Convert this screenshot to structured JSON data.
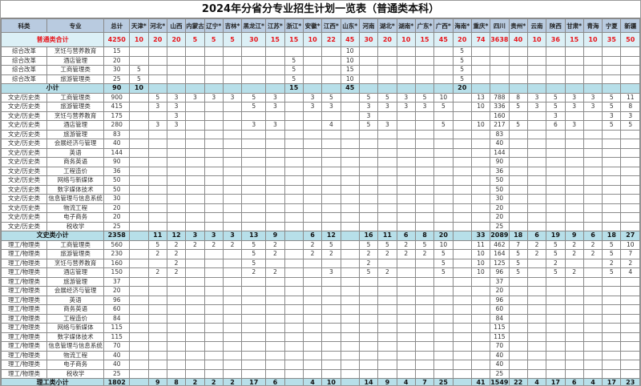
{
  "title": "2024年分省分专业招生计划一览表（普通类本科）",
  "headers": {
    "category": "科类",
    "major": "专业",
    "total": "总计"
  },
  "provinces": [
    "天津*",
    "河北*",
    "山西",
    "内蒙古",
    "辽宁*",
    "吉林*",
    "黑龙江*",
    "江苏*",
    "浙江*",
    "安徽*",
    "江西*",
    "山东*",
    "河南",
    "湖北*",
    "湖南*",
    "广东*",
    "广西*",
    "海南*",
    "重庆*",
    "四川",
    "贵州*",
    "云南",
    "陕西",
    "甘肃*",
    "青海",
    "宁夏",
    "新疆"
  ],
  "colors": {
    "header_bg": "#b9cbe0",
    "total_bg": "#dcf0f6",
    "subtotal_bg": "#b7dfe9",
    "total_text": "#e8141b"
  },
  "grand_total": {
    "label": "普通类合计",
    "total": "4250",
    "values": [
      "10",
      "20",
      "20",
      "5",
      "5",
      "5",
      "30",
      "15",
      "15",
      "10",
      "22",
      "45",
      "30",
      "20",
      "10",
      "15",
      "45",
      "20",
      "74",
      "3638",
      "40",
      "10",
      "36",
      "15",
      "10",
      "35",
      "50"
    ]
  },
  "rows": [
    {
      "type": "row",
      "category": "综合改革",
      "major": "烹饪与营养教育",
      "total": "15",
      "values": [
        "",
        "",
        "",
        "",
        "",
        "",
        "",
        "",
        "",
        "",
        "",
        "10",
        "",
        "",
        "",
        "",
        "",
        "5",
        "",
        "",
        "",
        "",
        "",
        "",
        "",
        "",
        ""
      ]
    },
    {
      "type": "row",
      "category": "综合改革",
      "major": "酒店管理",
      "total": "20",
      "values": [
        "",
        "",
        "",
        "",
        "",
        "",
        "",
        "",
        "5",
        "",
        "",
        "10",
        "",
        "",
        "",
        "",
        "",
        "5",
        "",
        "",
        "",
        "",
        "",
        "",
        "",
        "",
        ""
      ]
    },
    {
      "type": "row",
      "category": "综合改革",
      "major": "工商管理类",
      "total": "30",
      "values": [
        "5",
        "",
        "",
        "",
        "",
        "",
        "",
        "",
        "5",
        "",
        "",
        "15",
        "",
        "",
        "",
        "",
        "",
        "5",
        "",
        "",
        "",
        "",
        "",
        "",
        "",
        "",
        ""
      ]
    },
    {
      "type": "row",
      "category": "综合改革",
      "major": "旅游管理类",
      "total": "25",
      "values": [
        "5",
        "",
        "",
        "",
        "",
        "",
        "",
        "",
        "5",
        "",
        "",
        "10",
        "",
        "",
        "",
        "",
        "",
        "5",
        "",
        "",
        "",
        "",
        "",
        "",
        "",
        "",
        ""
      ]
    },
    {
      "type": "sub",
      "label": "小计",
      "total": "90",
      "values": [
        "10",
        "",
        "",
        "",
        "",
        "",
        "",
        "",
        "15",
        "",
        "",
        "45",
        "",
        "",
        "",
        "",
        "",
        "20",
        "",
        "",
        "",
        "",
        "",
        "",
        "",
        "",
        ""
      ]
    },
    {
      "type": "row",
      "category": "文史/历史类",
      "major": "工商管理类",
      "total": "900",
      "values": [
        "",
        "5",
        "3",
        "3",
        "3",
        "3",
        "5",
        "3",
        "",
        "3",
        "5",
        "",
        "5",
        "5",
        "3",
        "5",
        "10",
        "",
        "13",
        "788",
        "8",
        "3",
        "5",
        "3",
        "3",
        "5",
        "11"
      ]
    },
    {
      "type": "row",
      "category": "文史/历史类",
      "major": "旅游管理类",
      "total": "415",
      "values": [
        "",
        "3",
        "3",
        "",
        "",
        "",
        "5",
        "3",
        "",
        "3",
        "3",
        "",
        "3",
        "3",
        "3",
        "3",
        "5",
        "",
        "10",
        "336",
        "5",
        "3",
        "5",
        "3",
        "3",
        "5",
        "8"
      ]
    },
    {
      "type": "row",
      "category": "文史/历史类",
      "major": "烹饪与营养教育",
      "total": "175",
      "values": [
        "",
        "",
        "3",
        "",
        "",
        "",
        "",
        "",
        "",
        "",
        "",
        "",
        "3",
        "",
        "",
        "",
        "",
        "",
        "",
        "160",
        "",
        "",
        "3",
        "",
        "",
        "3",
        "3"
      ]
    },
    {
      "type": "row",
      "category": "文史/历史类",
      "major": "酒店管理",
      "total": "280",
      "values": [
        "",
        "3",
        "3",
        "",
        "",
        "",
        "3",
        "3",
        "",
        "",
        "4",
        "",
        "5",
        "3",
        "",
        "",
        "5",
        "",
        "10",
        "217",
        "5",
        "",
        "6",
        "3",
        "",
        "5",
        "5"
      ]
    },
    {
      "type": "row",
      "category": "文史/历史类",
      "major": "旅游管理",
      "total": "83",
      "values": [
        "",
        "",
        "",
        "",
        "",
        "",
        "",
        "",
        "",
        "",
        "",
        "",
        "",
        "",
        "",
        "",
        "",
        "",
        "",
        "83",
        "",
        "",
        "",
        "",
        "",
        "",
        ""
      ]
    },
    {
      "type": "row",
      "category": "文史/历史类",
      "major": "会展经济与管理",
      "total": "40",
      "values": [
        "",
        "",
        "",
        "",
        "",
        "",
        "",
        "",
        "",
        "",
        "",
        "",
        "",
        "",
        "",
        "",
        "",
        "",
        "",
        "40",
        "",
        "",
        "",
        "",
        "",
        "",
        ""
      ]
    },
    {
      "type": "row",
      "category": "文史/历史类",
      "major": "英语",
      "total": "144",
      "values": [
        "",
        "",
        "",
        "",
        "",
        "",
        "",
        "",
        "",
        "",
        "",
        "",
        "",
        "",
        "",
        "",
        "",
        "",
        "",
        "144",
        "",
        "",
        "",
        "",
        "",
        "",
        ""
      ]
    },
    {
      "type": "row",
      "category": "文史/历史类",
      "major": "商务英语",
      "total": "90",
      "values": [
        "",
        "",
        "",
        "",
        "",
        "",
        "",
        "",
        "",
        "",
        "",
        "",
        "",
        "",
        "",
        "",
        "",
        "",
        "",
        "90",
        "",
        "",
        "",
        "",
        "",
        "",
        ""
      ]
    },
    {
      "type": "row",
      "category": "文史/历史类",
      "major": "工程造价",
      "total": "36",
      "values": [
        "",
        "",
        "",
        "",
        "",
        "",
        "",
        "",
        "",
        "",
        "",
        "",
        "",
        "",
        "",
        "",
        "",
        "",
        "",
        "36",
        "",
        "",
        "",
        "",
        "",
        "",
        ""
      ]
    },
    {
      "type": "row",
      "category": "文史/历史类",
      "major": "网络与新媒体",
      "total": "50",
      "values": [
        "",
        "",
        "",
        "",
        "",
        "",
        "",
        "",
        "",
        "",
        "",
        "",
        "",
        "",
        "",
        "",
        "",
        "",
        "",
        "50",
        "",
        "",
        "",
        "",
        "",
        "",
        ""
      ]
    },
    {
      "type": "row",
      "category": "文史/历史类",
      "major": "数字媒体技术",
      "total": "50",
      "values": [
        "",
        "",
        "",
        "",
        "",
        "",
        "",
        "",
        "",
        "",
        "",
        "",
        "",
        "",
        "",
        "",
        "",
        "",
        "",
        "50",
        "",
        "",
        "",
        "",
        "",
        "",
        ""
      ]
    },
    {
      "type": "row",
      "category": "文史/历史类",
      "major": "信息管理与信息系统",
      "total": "30",
      "values": [
        "",
        "",
        "",
        "",
        "",
        "",
        "",
        "",
        "",
        "",
        "",
        "",
        "",
        "",
        "",
        "",
        "",
        "",
        "",
        "30",
        "",
        "",
        "",
        "",
        "",
        "",
        ""
      ]
    },
    {
      "type": "row",
      "category": "文史/历史类",
      "major": "物流工程",
      "total": "20",
      "values": [
        "",
        "",
        "",
        "",
        "",
        "",
        "",
        "",
        "",
        "",
        "",
        "",
        "",
        "",
        "",
        "",
        "",
        "",
        "",
        "20",
        "",
        "",
        "",
        "",
        "",
        "",
        ""
      ]
    },
    {
      "type": "row",
      "category": "文史/历史类",
      "major": "电子商务",
      "total": "20",
      "values": [
        "",
        "",
        "",
        "",
        "",
        "",
        "",
        "",
        "",
        "",
        "",
        "",
        "",
        "",
        "",
        "",
        "",
        "",
        "",
        "20",
        "",
        "",
        "",
        "",
        "",
        "",
        ""
      ]
    },
    {
      "type": "row",
      "category": "文史/历史类",
      "major": "税收学",
      "total": "25",
      "values": [
        "",
        "",
        "",
        "",
        "",
        "",
        "",
        "",
        "",
        "",
        "",
        "",
        "",
        "",
        "",
        "",
        "",
        "",
        "",
        "25",
        "",
        "",
        "",
        "",
        "",
        "",
        ""
      ]
    },
    {
      "type": "sub",
      "label": "文史类小计",
      "total": "2358",
      "values": [
        "",
        "11",
        "12",
        "3",
        "3",
        "3",
        "13",
        "9",
        "",
        "6",
        "12",
        "",
        "16",
        "11",
        "6",
        "8",
        "20",
        "",
        "33",
        "2089",
        "18",
        "6",
        "19",
        "9",
        "6",
        "18",
        "27"
      ]
    },
    {
      "type": "row",
      "category": "理工/物理类",
      "major": "工商管理类",
      "total": "560",
      "values": [
        "",
        "5",
        "2",
        "2",
        "2",
        "2",
        "5",
        "2",
        "",
        "2",
        "5",
        "",
        "5",
        "5",
        "2",
        "5",
        "10",
        "",
        "11",
        "462",
        "7",
        "2",
        "5",
        "2",
        "2",
        "5",
        "10"
      ]
    },
    {
      "type": "row",
      "category": "理工/物理类",
      "major": "旅游管理类",
      "total": "230",
      "values": [
        "",
        "2",
        "2",
        "",
        "",
        "",
        "5",
        "2",
        "",
        "2",
        "2",
        "",
        "2",
        "2",
        "2",
        "2",
        "5",
        "",
        "10",
        "164",
        "5",
        "2",
        "5",
        "2",
        "2",
        "5",
        "7"
      ]
    },
    {
      "type": "row",
      "category": "理工/物理类",
      "major": "烹饪与营养教育",
      "total": "160",
      "values": [
        "",
        "",
        "2",
        "",
        "",
        "",
        "5",
        "",
        "",
        "",
        "",
        "",
        "2",
        "",
        "",
        "",
        "5",
        "",
        "10",
        "125",
        "5",
        "",
        "2",
        "",
        "",
        "2",
        "2"
      ]
    },
    {
      "type": "row",
      "category": "理工/物理类",
      "major": "酒店管理",
      "total": "150",
      "values": [
        "",
        "2",
        "2",
        "",
        "",
        "",
        "2",
        "2",
        "",
        "",
        "3",
        "",
        "5",
        "2",
        "",
        "",
        "5",
        "",
        "10",
        "96",
        "5",
        "",
        "5",
        "2",
        "",
        "5",
        "4"
      ]
    },
    {
      "type": "row",
      "category": "理工/物理类",
      "major": "旅游管理",
      "total": "37",
      "values": [
        "",
        "",
        "",
        "",
        "",
        "",
        "",
        "",
        "",
        "",
        "",
        "",
        "",
        "",
        "",
        "",
        "",
        "",
        "",
        "37",
        "",
        "",
        "",
        "",
        "",
        "",
        ""
      ]
    },
    {
      "type": "row",
      "category": "理工/物理类",
      "major": "会展经济与管理",
      "total": "20",
      "values": [
        "",
        "",
        "",
        "",
        "",
        "",
        "",
        "",
        "",
        "",
        "",
        "",
        "",
        "",
        "",
        "",
        "",
        "",
        "",
        "20",
        "",
        "",
        "",
        "",
        "",
        "",
        ""
      ]
    },
    {
      "type": "row",
      "category": "理工/物理类",
      "major": "英语",
      "total": "96",
      "values": [
        "",
        "",
        "",
        "",
        "",
        "",
        "",
        "",
        "",
        "",
        "",
        "",
        "",
        "",
        "",
        "",
        "",
        "",
        "",
        "96",
        "",
        "",
        "",
        "",
        "",
        "",
        ""
      ]
    },
    {
      "type": "row",
      "category": "理工/物理类",
      "major": "商务英语",
      "total": "60",
      "values": [
        "",
        "",
        "",
        "",
        "",
        "",
        "",
        "",
        "",
        "",
        "",
        "",
        "",
        "",
        "",
        "",
        "",
        "",
        "",
        "60",
        "",
        "",
        "",
        "",
        "",
        "",
        ""
      ]
    },
    {
      "type": "row",
      "category": "理工/物理类",
      "major": "工程造价",
      "total": "84",
      "values": [
        "",
        "",
        "",
        "",
        "",
        "",
        "",
        "",
        "",
        "",
        "",
        "",
        "",
        "",
        "",
        "",
        "",
        "",
        "",
        "84",
        "",
        "",
        "",
        "",
        "",
        "",
        ""
      ]
    },
    {
      "type": "row",
      "category": "理工/物理类",
      "major": "网络与新媒体",
      "total": "115",
      "values": [
        "",
        "",
        "",
        "",
        "",
        "",
        "",
        "",
        "",
        "",
        "",
        "",
        "",
        "",
        "",
        "",
        "",
        "",
        "",
        "115",
        "",
        "",
        "",
        "",
        "",
        "",
        ""
      ]
    },
    {
      "type": "row",
      "category": "理工/物理类",
      "major": "数字媒体技术",
      "total": "115",
      "values": [
        "",
        "",
        "",
        "",
        "",
        "",
        "",
        "",
        "",
        "",
        "",
        "",
        "",
        "",
        "",
        "",
        "",
        "",
        "",
        "115",
        "",
        "",
        "",
        "",
        "",
        "",
        ""
      ]
    },
    {
      "type": "row",
      "category": "理工/物理类",
      "major": "信息管理与信息系统",
      "total": "70",
      "values": [
        "",
        "",
        "",
        "",
        "",
        "",
        "",
        "",
        "",
        "",
        "",
        "",
        "",
        "",
        "",
        "",
        "",
        "",
        "",
        "70",
        "",
        "",
        "",
        "",
        "",
        "",
        ""
      ]
    },
    {
      "type": "row",
      "category": "理工/物理类",
      "major": "物流工程",
      "total": "40",
      "values": [
        "",
        "",
        "",
        "",
        "",
        "",
        "",
        "",
        "",
        "",
        "",
        "",
        "",
        "",
        "",
        "",
        "",
        "",
        "",
        "40",
        "",
        "",
        "",
        "",
        "",
        "",
        ""
      ]
    },
    {
      "type": "row",
      "category": "理工/物理类",
      "major": "电子商务",
      "total": "40",
      "values": [
        "",
        "",
        "",
        "",
        "",
        "",
        "",
        "",
        "",
        "",
        "",
        "",
        "",
        "",
        "",
        "",
        "",
        "",
        "",
        "40",
        "",
        "",
        "",
        "",
        "",
        "",
        ""
      ]
    },
    {
      "type": "row",
      "category": "理工/物理类",
      "major": "税收学",
      "total": "25",
      "values": [
        "",
        "",
        "",
        "",
        "",
        "",
        "",
        "",
        "",
        "",
        "",
        "",
        "",
        "",
        "",
        "",
        "",
        "",
        "",
        "25",
        "",
        "",
        "",
        "",
        "",
        "",
        ""
      ]
    },
    {
      "type": "sub",
      "label": "理工类小计",
      "total": "1802",
      "values": [
        "",
        "9",
        "8",
        "2",
        "2",
        "2",
        "17",
        "6",
        "",
        "4",
        "10",
        "",
        "14",
        "9",
        "4",
        "7",
        "25",
        "",
        "41",
        "1549",
        "22",
        "4",
        "17",
        "6",
        "4",
        "17",
        "23"
      ]
    }
  ]
}
